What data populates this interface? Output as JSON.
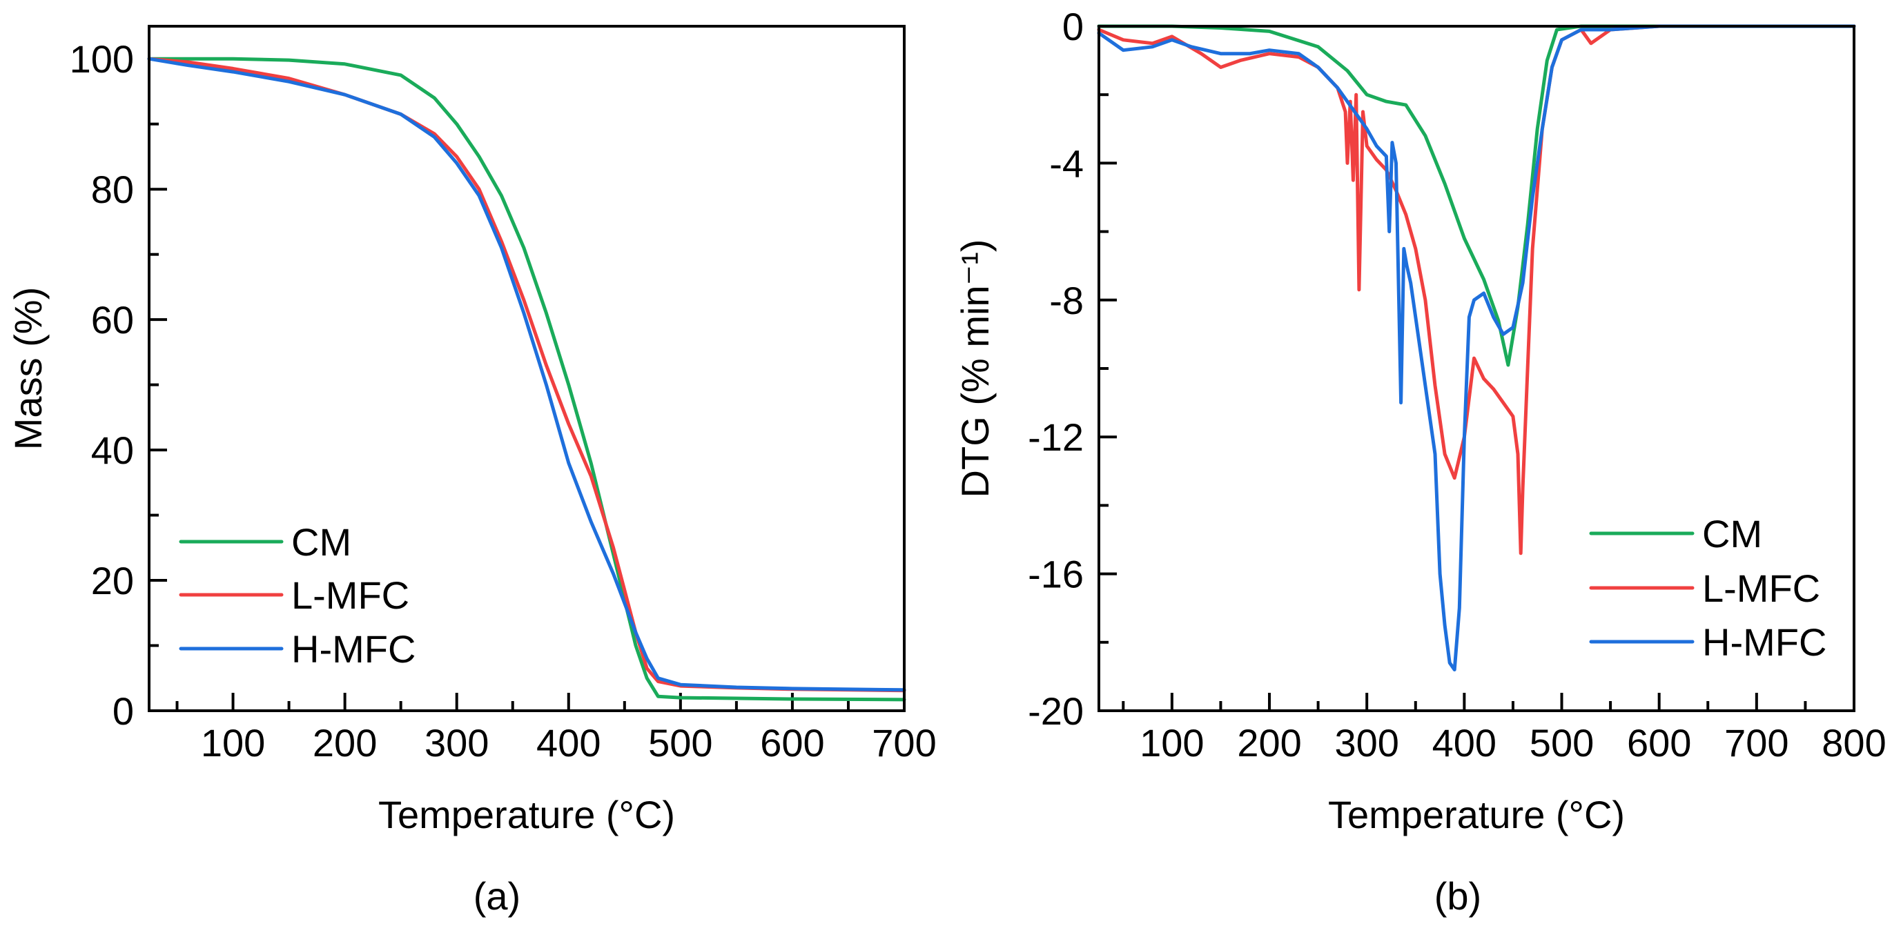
{
  "colors": {
    "CM": "#1aab5a",
    "L-MFC": "#f04040",
    "H-MFC": "#1e6fdc"
  },
  "panels": [
    {
      "label": "(a)"
    },
    {
      "label": "(b)"
    }
  ],
  "chart_data": [
    {
      "type": "line",
      "title": "",
      "xlabel": "Temperature (°C)",
      "ylabel": "Mass (%)",
      "xlim": [
        25,
        700
      ],
      "ylim": [
        0,
        105
      ],
      "xticks": [
        100,
        200,
        300,
        400,
        500,
        600,
        700
      ],
      "yticks": [
        0,
        20,
        40,
        60,
        80,
        100
      ],
      "legend_position": "bottom-left",
      "series": [
        {
          "name": "CM",
          "x": [
            25,
            60,
            100,
            150,
            200,
            250,
            280,
            300,
            320,
            340,
            360,
            380,
            400,
            420,
            440,
            450,
            460,
            470,
            480,
            500,
            550,
            600,
            700
          ],
          "y": [
            100,
            100,
            100,
            99.8,
            99.2,
            97.5,
            94,
            90,
            85,
            79,
            71,
            61,
            50,
            38,
            24,
            17,
            10,
            5,
            2.2,
            2,
            1.9,
            1.8,
            1.7
          ]
        },
        {
          "name": "L-MFC",
          "x": [
            25,
            60,
            100,
            150,
            200,
            250,
            280,
            300,
            320,
            340,
            360,
            380,
            400,
            420,
            440,
            460,
            470,
            480,
            500,
            550,
            600,
            700
          ],
          "y": [
            100,
            99.5,
            98.5,
            97,
            94.5,
            91.5,
            88.5,
            85,
            80,
            72,
            63,
            53,
            44,
            36,
            25,
            12,
            6.5,
            4.5,
            3.8,
            3.5,
            3.3,
            3.1
          ]
        },
        {
          "name": "H-MFC",
          "x": [
            25,
            60,
            100,
            150,
            200,
            250,
            280,
            300,
            320,
            340,
            360,
            380,
            400,
            420,
            440,
            460,
            470,
            480,
            500,
            550,
            600,
            700
          ],
          "y": [
            100,
            99,
            98,
            96.5,
            94.5,
            91.5,
            88,
            84,
            79,
            71,
            61,
            50,
            38,
            29,
            21,
            12,
            8,
            5,
            4,
            3.6,
            3.4,
            3.2
          ]
        }
      ]
    },
    {
      "type": "line",
      "title": "",
      "xlabel": "Temperature (°C)",
      "ylabel": "DTG (% min⁻¹)",
      "xlim": [
        25,
        800
      ],
      "ylim": [
        -20,
        0
      ],
      "xticks": [
        100,
        200,
        300,
        400,
        500,
        600,
        700,
        800
      ],
      "yticks": [
        0,
        -4,
        -8,
        -12,
        -16,
        -20
      ],
      "legend_position": "bottom-right",
      "series": [
        {
          "name": "CM",
          "x": [
            25,
            100,
            150,
            200,
            250,
            280,
            300,
            320,
            340,
            360,
            380,
            400,
            420,
            435,
            445,
            455,
            465,
            475,
            485,
            495,
            520,
            600,
            700,
            800
          ],
          "y": [
            0,
            0,
            -0.05,
            -0.15,
            -0.6,
            -1.3,
            -2.0,
            -2.2,
            -2.3,
            -3.2,
            -4.6,
            -6.2,
            -7.4,
            -8.6,
            -9.9,
            -8.2,
            -5.8,
            -3.0,
            -1.0,
            -0.1,
            0,
            0,
            0,
            0
          ]
        },
        {
          "name": "L-MFC",
          "x": [
            25,
            50,
            80,
            100,
            130,
            150,
            170,
            200,
            230,
            250,
            270,
            278,
            280,
            283,
            286,
            289,
            292,
            296,
            300,
            310,
            320,
            330,
            340,
            350,
            360,
            370,
            380,
            390,
            400,
            410,
            420,
            430,
            440,
            450,
            455,
            458,
            460,
            465,
            470,
            480,
            490,
            500,
            520,
            530,
            550,
            600,
            700,
            800
          ],
          "y": [
            -0.1,
            -0.4,
            -0.5,
            -0.3,
            -0.8,
            -1.2,
            -1.0,
            -0.8,
            -0.9,
            -1.2,
            -1.8,
            -2.5,
            -4.0,
            -2.2,
            -4.5,
            -2.0,
            -7.7,
            -2.5,
            -3.5,
            -3.9,
            -4.2,
            -4.8,
            -5.5,
            -6.5,
            -8.0,
            -10.5,
            -12.5,
            -13.2,
            -12.0,
            -9.7,
            -10.3,
            -10.6,
            -11.0,
            -11.4,
            -12.5,
            -15.4,
            -13.5,
            -10.0,
            -6.5,
            -3.0,
            -1.2,
            -0.4,
            -0.1,
            -0.5,
            -0.1,
            0,
            0,
            0
          ]
        },
        {
          "name": "H-MFC",
          "x": [
            25,
            50,
            80,
            100,
            120,
            150,
            180,
            200,
            230,
            250,
            270,
            290,
            300,
            310,
            320,
            323,
            326,
            330,
            335,
            338,
            341,
            345,
            350,
            360,
            370,
            375,
            380,
            385,
            390,
            395,
            400,
            405,
            410,
            420,
            430,
            440,
            450,
            460,
            470,
            480,
            490,
            500,
            520,
            550,
            600,
            700,
            800
          ],
          "y": [
            -0.2,
            -0.7,
            -0.6,
            -0.4,
            -0.6,
            -0.8,
            -0.8,
            -0.7,
            -0.8,
            -1.2,
            -1.8,
            -2.6,
            -3.0,
            -3.5,
            -3.8,
            -6.0,
            -3.4,
            -4.0,
            -11.0,
            -6.5,
            -7.0,
            -7.5,
            -8.5,
            -10.5,
            -12.5,
            -16.0,
            -17.5,
            -18.6,
            -18.8,
            -17.0,
            -12.0,
            -8.5,
            -8.0,
            -7.8,
            -8.5,
            -9.0,
            -8.8,
            -7.5,
            -5.0,
            -3.0,
            -1.2,
            -0.4,
            -0.1,
            -0.1,
            0,
            0,
            0
          ]
        }
      ]
    }
  ]
}
